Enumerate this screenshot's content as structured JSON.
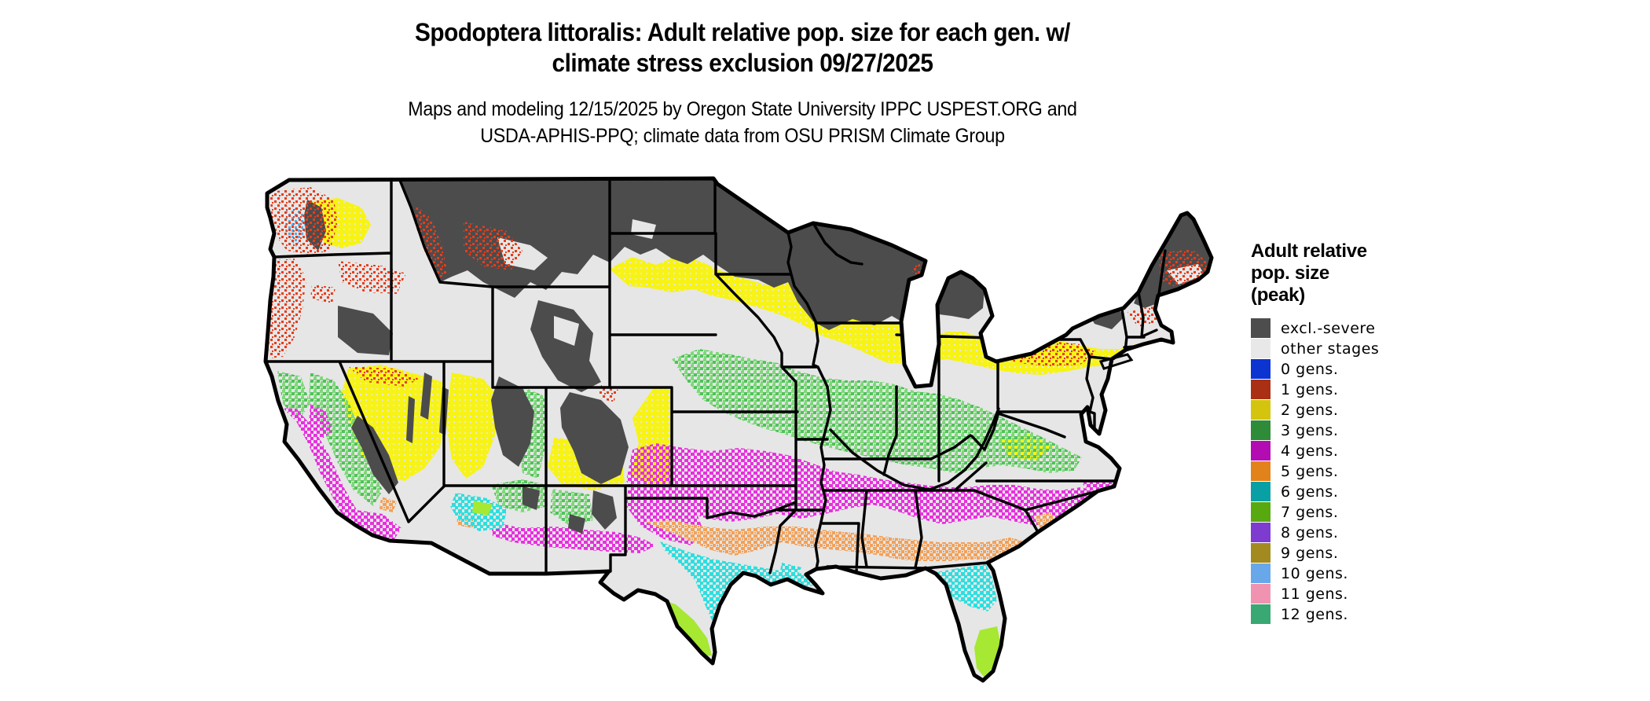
{
  "title": {
    "line1": "Spodoptera littoralis: Adult relative pop. size for each gen. w/",
    "line2": "climate stress exclusion 09/27/2025"
  },
  "subtitle": {
    "line1": "Maps and modeling 12/15/2025 by Oregon State University IPPC USPEST.ORG and",
    "line2": "USDA-APHIS-PPQ; climate data from OSU PRISM Climate Group"
  },
  "legend": {
    "title_lines": [
      "Adult relative",
      "pop. size",
      "(peak)"
    ],
    "items": [
      {
        "key": "excl",
        "label": "excl.-severe",
        "color": "#4d4d4d"
      },
      {
        "key": "other",
        "label": "other stages",
        "color": "#e8e8e8"
      },
      {
        "key": "g0",
        "label": "0 gens.",
        "color": "#0b34d1"
      },
      {
        "key": "g1",
        "label": "1 gens.",
        "color": "#a93015"
      },
      {
        "key": "g2",
        "label": "2 gens.",
        "color": "#d4c40e"
      },
      {
        "key": "g3",
        "label": "3 gens.",
        "color": "#2e8b37"
      },
      {
        "key": "g4",
        "label": "4 gens.",
        "color": "#b30cb3"
      },
      {
        "key": "g5",
        "label": "5 gens.",
        "color": "#e2821b"
      },
      {
        "key": "g6",
        "label": "6 gens.",
        "color": "#09a0a5"
      },
      {
        "key": "g7",
        "label": "7 gens.",
        "color": "#58a810"
      },
      {
        "key": "g8",
        "label": "8 gens.",
        "color": "#7d3bd0"
      },
      {
        "key": "g9",
        "label": "9 gens.",
        "color": "#a28a20"
      },
      {
        "key": "g10",
        "label": "10 gens.",
        "color": "#68a8ea"
      },
      {
        "key": "g11",
        "label": "11 gens.",
        "color": "#f093b0"
      },
      {
        "key": "g12",
        "label": "12 gens.",
        "color": "#39a873"
      }
    ]
  },
  "map_palette": {
    "excl": "#4c4c4c",
    "other": "#e6e6e6",
    "g0": "#0b34d1",
    "g1": "#e83c1a",
    "g2": "#f7f316",
    "g3": "#7ed879",
    "g3b": "#4fc25a",
    "g4": "#e92fe0",
    "g5": "#f2a159",
    "g6": "#2edede",
    "g7": "#a6e832",
    "g8": "#8447e0",
    "g10": "#54aef0",
    "border": "#000000"
  }
}
